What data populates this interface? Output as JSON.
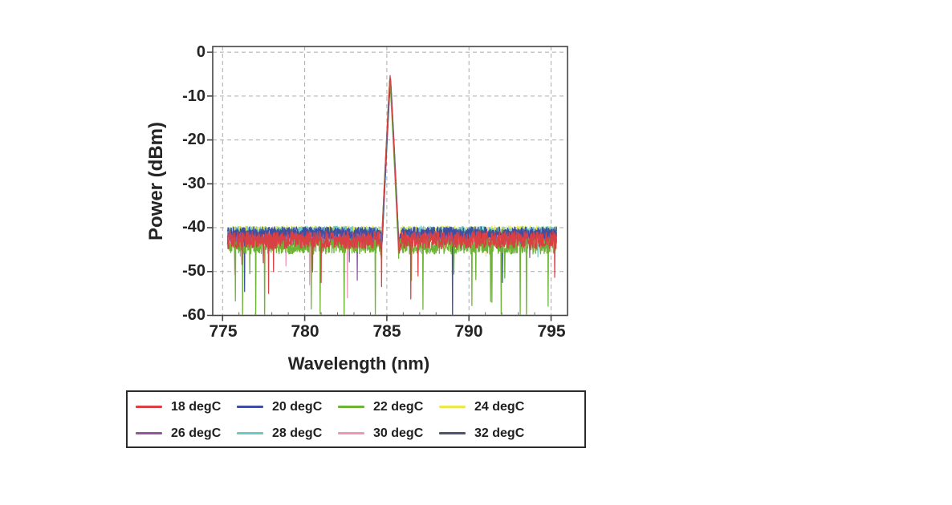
{
  "figure": {
    "background": "#ffffff",
    "frame_color": "#454545",
    "grid_color": "#ababab",
    "tick_text_color": "#242424"
  },
  "chart_data": {
    "type": "line",
    "title": "",
    "xlabel": "Wavelength (nm)",
    "ylabel": "Power (dBm)",
    "x_ticks": [
      775,
      780,
      785,
      790,
      795
    ],
    "y_ticks": [
      0,
      -10,
      -20,
      -30,
      -40,
      -50,
      -60
    ],
    "xlim": [
      774.4,
      796.0
    ],
    "ylim": [
      -60,
      1.3
    ],
    "grid": true,
    "grid_style": "dashed",
    "legend_position": "below-left",
    "x_start": 775.3,
    "x_end": 795.35,
    "x_step": 0.02,
    "peak_summary": "All eight temperature spectra overlap: a single narrow peak near 785.2 nm reaching about -5.3 dBm above a noise floor of roughly -40 to -45 dBm, with occasional downward noise spikes below -60 dBm.",
    "series": [
      {
        "name": "18 degC",
        "color": "#d94044",
        "seed": 18,
        "peak_nm": 785.2,
        "peak_dbm": -5.3,
        "noise_mean_dbm": -42.8,
        "noise_jitter_db": 2.0,
        "deep_spike_prob": 0.005,
        "deep_spike_max_db": -57,
        "dip_db": 8.0
      },
      {
        "name": "20 degC",
        "color": "#3e4fa3",
        "seed": 20,
        "peak_nm": 785.22,
        "peak_dbm": -6.0,
        "noise_mean_dbm": -41.2,
        "noise_jitter_db": 1.4,
        "deep_spike_prob": 0.0015,
        "deep_spike_max_db": -58,
        "dip_db": 5.5
      },
      {
        "name": "22 degC",
        "color": "#6db335",
        "seed": 22,
        "peak_nm": 785.18,
        "peak_dbm": -6.2,
        "noise_mean_dbm": -44.2,
        "noise_jitter_db": 1.8,
        "deep_spike_prob": 0.015,
        "deep_spike_max_db": -63,
        "dip_db": 5.5
      },
      {
        "name": "24 degC",
        "color": "#ece94f",
        "seed": 24,
        "peak_nm": 785.21,
        "peak_dbm": -6.3,
        "noise_mean_dbm": -40.8,
        "noise_jitter_db": 1.2,
        "deep_spike_prob": 0.001,
        "deep_spike_max_db": -50,
        "dip_db": 5.5
      },
      {
        "name": "26 degC",
        "color": "#9455a3",
        "seed": 26,
        "peak_nm": 785.19,
        "peak_dbm": -5.6,
        "noise_mean_dbm": -42.5,
        "noise_jitter_db": 1.5,
        "deep_spike_prob": 0.003,
        "deep_spike_max_db": -54,
        "dip_db": 6.0
      },
      {
        "name": "28 degC",
        "color": "#6cc8c4",
        "seed": 28,
        "peak_nm": 785.23,
        "peak_dbm": -6.1,
        "noise_mean_dbm": -41.0,
        "noise_jitter_db": 1.3,
        "deep_spike_prob": 0.001,
        "deep_spike_max_db": -52,
        "dip_db": 5.5
      },
      {
        "name": "30 degC",
        "color": "#f097b7",
        "seed": 30,
        "peak_nm": 785.2,
        "peak_dbm": -5.9,
        "noise_mean_dbm": -42.8,
        "noise_jitter_db": 1.6,
        "deep_spike_prob": 0.004,
        "deep_spike_max_db": -56,
        "dip_db": 6.0
      },
      {
        "name": "32 degC",
        "color": "#4e5470",
        "seed": 32,
        "peak_nm": 785.22,
        "peak_dbm": -6.0,
        "noise_mean_dbm": -42.0,
        "noise_jitter_db": 1.5,
        "deep_spike_prob": 0.002,
        "deep_spike_max_db": -55,
        "dip_db": 5.5
      }
    ],
    "draw_order": [
      3,
      5,
      7,
      6,
      4,
      1,
      2,
      0
    ],
    "forced_spikes": [
      {
        "series": 2,
        "nm": 777.55,
        "dbm": -63.0
      },
      {
        "series": 2,
        "nm": 782.4,
        "dbm": -62.0
      },
      {
        "series": 2,
        "nm": 784.3,
        "dbm": -61.5
      },
      {
        "series": 2,
        "nm": 786.5,
        "dbm": -52.0
      },
      {
        "series": 2,
        "nm": 791.4,
        "dbm": -57.0
      },
      {
        "series": 2,
        "nm": 793.5,
        "dbm": -62.5
      },
      {
        "series": 1,
        "nm": 789.0,
        "dbm": -62.5
      },
      {
        "series": 0,
        "nm": 777.8,
        "dbm": -55.0
      },
      {
        "series": 0,
        "nm": 781.0,
        "dbm": -52.5
      },
      {
        "series": 0,
        "nm": 786.9,
        "dbm": -51.0
      },
      {
        "series": 6,
        "nm": 780.3,
        "dbm": -53.0
      },
      {
        "series": 6,
        "nm": 782.6,
        "dbm": -56.0
      },
      {
        "series": 4,
        "nm": 783.2,
        "dbm": -52.0
      }
    ]
  }
}
